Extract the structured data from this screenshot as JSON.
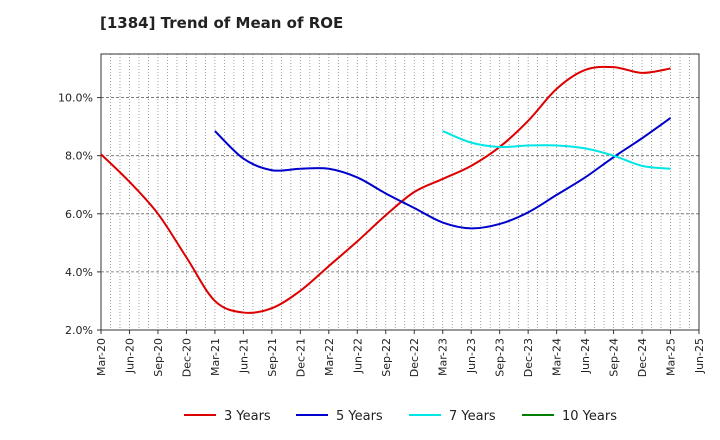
{
  "title": "[1384]  Trend of Mean of ROE",
  "chart_data": {
    "type": "line",
    "title": "[1384]  Trend of Mean of ROE",
    "x": [
      "Mar-20",
      "Jun-20",
      "Sep-20",
      "Dec-20",
      "Mar-21",
      "Jun-21",
      "Sep-21",
      "Dec-21",
      "Mar-22",
      "Jun-22",
      "Sep-22",
      "Dec-22",
      "Mar-23",
      "Jun-23",
      "Sep-23",
      "Dec-23",
      "Mar-24",
      "Jun-24",
      "Sep-24",
      "Dec-24",
      "Mar-25",
      "Jun-25"
    ],
    "ylim": [
      2.0,
      11.5
    ],
    "yticks": [
      2.0,
      4.0,
      6.0,
      8.0,
      10.0
    ],
    "ytick_labels": [
      "2.0%",
      "4.0%",
      "6.0%",
      "8.0%",
      "10.0%"
    ],
    "grid": true,
    "legend_position": "bottom",
    "series": [
      {
        "name": "3 Years",
        "color": "#dd0000",
        "values": [
          8.05,
          7.1,
          6.0,
          4.5,
          3.0,
          2.6,
          2.75,
          3.35,
          4.2,
          5.05,
          5.95,
          6.75,
          7.2,
          7.65,
          8.3,
          9.2,
          10.3,
          10.95,
          11.05,
          10.85,
          11.0,
          null
        ]
      },
      {
        "name": "5 Years",
        "color": "#0000cc",
        "values": [
          null,
          null,
          null,
          null,
          8.85,
          7.9,
          7.5,
          7.55,
          7.55,
          7.25,
          6.7,
          6.2,
          5.7,
          5.5,
          5.65,
          6.05,
          6.65,
          7.25,
          7.95,
          8.6,
          9.3,
          null
        ]
      },
      {
        "name": "7 Years",
        "color": "#00e5e5",
        "values": [
          null,
          null,
          null,
          null,
          null,
          null,
          null,
          null,
          null,
          null,
          null,
          null,
          8.85,
          8.45,
          8.3,
          8.35,
          8.35,
          8.25,
          8.0,
          7.65,
          7.55,
          null
        ]
      },
      {
        "name": "10 Years",
        "color": "#008000",
        "values": [
          null,
          null,
          null,
          null,
          null,
          null,
          null,
          null,
          null,
          null,
          null,
          null,
          null,
          null,
          null,
          null,
          null,
          null,
          null,
          null,
          null,
          null
        ]
      }
    ]
  }
}
